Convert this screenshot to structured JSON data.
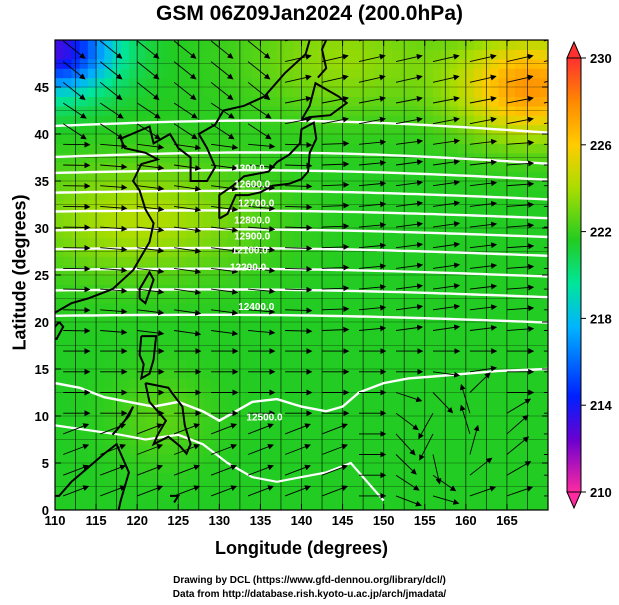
{
  "title": "GSM 06Z09Jan2024 (200.0hPa)",
  "x_label": "Longitude (degrees)",
  "y_label": "Latitude  (degrees)",
  "credit_line1": "Drawing by DCL (https://www.gfd-dennou.org/library/dcl/)",
  "credit_line2": "Data from http://database.rish.kyoto-u.ac.jp/arch/jmadata/",
  "x_ticks": [
    {
      "v": 110,
      "t": "110"
    },
    {
      "v": 115,
      "t": "115"
    },
    {
      "v": 120,
      "t": "120"
    },
    {
      "v": 125,
      "t": "125"
    },
    {
      "v": 130,
      "t": "130"
    },
    {
      "v": 135,
      "t": "135"
    },
    {
      "v": 140,
      "t": "140"
    },
    {
      "v": 145,
      "t": "145"
    },
    {
      "v": 150,
      "t": "150"
    },
    {
      "v": 155,
      "t": "155"
    },
    {
      "v": 160,
      "t": "160"
    },
    {
      "v": 165,
      "t": "165"
    }
  ],
  "y_ticks": [
    {
      "v": 0,
      "t": "0"
    },
    {
      "v": 5,
      "t": "5"
    },
    {
      "v": 10,
      "t": "10"
    },
    {
      "v": 15,
      "t": "15"
    },
    {
      "v": 20,
      "t": "20"
    },
    {
      "v": 25,
      "t": "25"
    },
    {
      "v": 30,
      "t": "30"
    },
    {
      "v": 35,
      "t": "35"
    },
    {
      "v": 40,
      "t": "40"
    },
    {
      "v": 45,
      "t": "45"
    }
  ],
  "colorbar_ticks": [
    {
      "v": 210,
      "t": "210"
    },
    {
      "v": 214,
      "t": "214"
    },
    {
      "v": 218,
      "t": "218"
    },
    {
      "v": 222,
      "t": "222"
    },
    {
      "v": 226,
      "t": "226"
    },
    {
      "v": 230,
      "t": "230"
    }
  ],
  "colorbar_range": [
    210,
    230
  ],
  "colorbar_colors": [
    "#ff2aa0",
    "#6a00d0",
    "#0020ff",
    "#00b4ff",
    "#00e69a",
    "#22cc22",
    "#aadd00",
    "#ffcc00",
    "#ff8800",
    "#ff3030"
  ],
  "contour_labels": [
    {
      "lon": 131.8,
      "lat": 36.0,
      "t": "1300.0"
    },
    {
      "lon": 131.8,
      "lat": 34.3,
      "t": "12600.0"
    },
    {
      "lon": 132.3,
      "lat": 32.3,
      "t": "12700.0"
    },
    {
      "lon": 131.8,
      "lat": 30.5,
      "t": "12800.0"
    },
    {
      "lon": 131.8,
      "lat": 28.8,
      "t": "12900.0"
    },
    {
      "lon": 131.5,
      "lat": 27.3,
      "t": "12100.0"
    },
    {
      "lon": 131.3,
      "lat": 25.5,
      "t": "12200.0"
    },
    {
      "lon": 132.3,
      "lat": 21.3,
      "t": "12400.0"
    },
    {
      "lon": 133.3,
      "lat": 9.5,
      "t": "12500.0"
    }
  ],
  "map": {
    "lon_range": [
      110,
      170
    ],
    "lat_range": [
      0,
      50
    ],
    "field_variable": "temperature (K)",
    "contour_variable": "geopotential height (m)"
  }
}
